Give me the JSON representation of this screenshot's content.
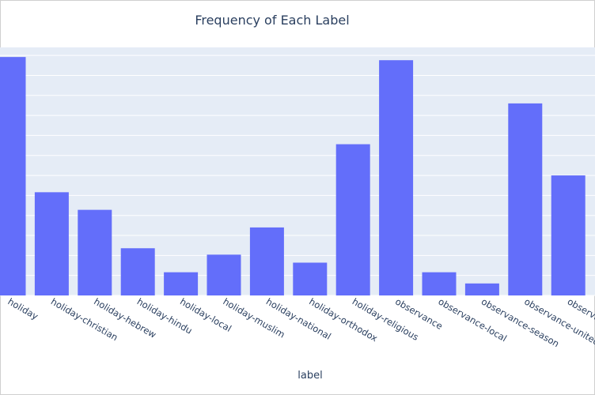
{
  "chart_data": {
    "type": "bar",
    "title": "Frequency of Each Label",
    "xlabel": "label",
    "ylabel": "",
    "categories": [
      "holiday",
      "holiday-christian",
      "holiday-hebrew",
      "holiday-hindu",
      "holiday-local",
      "holiday-muslim",
      "holiday-national",
      "holiday-orthodox",
      "holiday-religious",
      "observance",
      "observance-local",
      "observance-season",
      "observance-united-nations",
      "observance-unofficial"
    ],
    "values": [
      298,
      129,
      107,
      59,
      29,
      51,
      85,
      41,
      189,
      294,
      29,
      15,
      240,
      150
    ],
    "ylim": [
      0,
      310
    ],
    "grid": true,
    "colors": {
      "bar": "#636efa",
      "plot_bg": "#e5ecf6",
      "grid": "#ffffff",
      "text": "#2a3f5f"
    }
  }
}
